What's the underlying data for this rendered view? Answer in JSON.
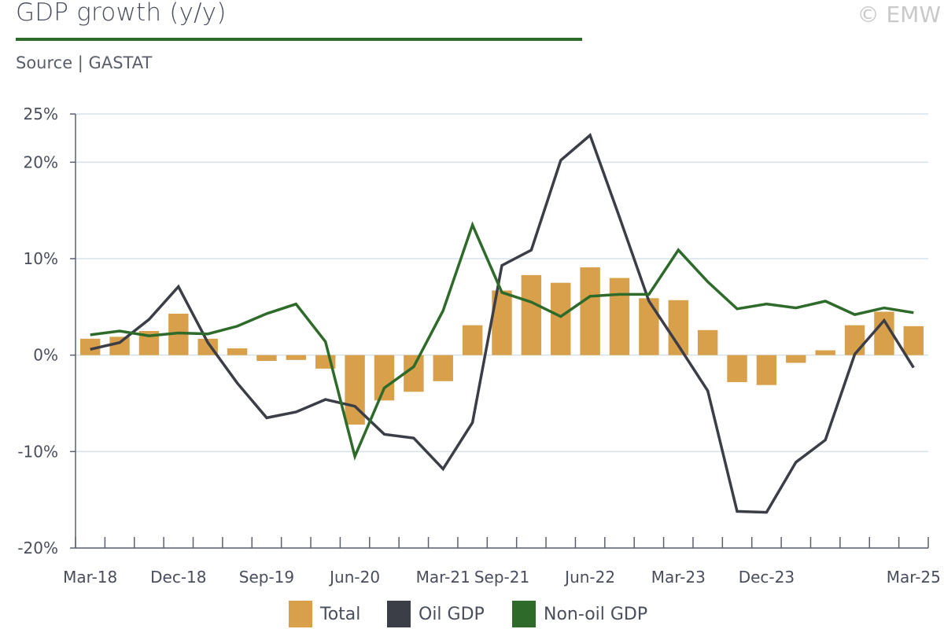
{
  "header": {
    "title": "GDP growth (y/y)",
    "source": "Source | GASTAT",
    "copyright": "© EMW"
  },
  "colors": {
    "total": "#d9a04c",
    "oil": "#3b3d47",
    "nonoil": "#2e6b2a",
    "title_rule": "#2e6b2a",
    "grid": "#d6e2ea",
    "axis": "#5c6070"
  },
  "chart_data": {
    "type": "bar",
    "title": "GDP growth (y/y)",
    "ylim": [
      -20,
      25
    ],
    "yticks": [
      25,
      20,
      10,
      0,
      -10,
      -20
    ],
    "ytick_labels": [
      "25%",
      "20%",
      "10%",
      "0%",
      "-10%",
      "-20%"
    ],
    "grid": true,
    "legend_position": "bottom",
    "x_tick_labels": [
      {
        "index": 0,
        "label": "Mar-18"
      },
      {
        "index": 3,
        "label": "Dec-18"
      },
      {
        "index": 6,
        "label": "Sep-19"
      },
      {
        "index": 9,
        "label": "Jun-20"
      },
      {
        "index": 12,
        "label": "Mar-21"
      },
      {
        "index": 14,
        "label": "Sep-21"
      },
      {
        "index": 17,
        "label": "Jun-22"
      },
      {
        "index": 20,
        "label": "Mar-23"
      },
      {
        "index": 23,
        "label": "Dec-23"
      },
      {
        "index": 28,
        "label": "Mar-25"
      }
    ],
    "categories": [
      "Q1-18",
      "Q2-18",
      "Q3-18",
      "Q4-18",
      "Q1-19",
      "Q2-19",
      "Q3-19",
      "Q4-19",
      "Q1-20",
      "Q2-20",
      "Q3-20",
      "Q4-20",
      "Q1-21",
      "Q2-21",
      "Q3-21",
      "Q4-21",
      "Q1-22",
      "Q2-22",
      "Q3-22",
      "Q4-22",
      "Q1-23",
      "Q2-23",
      "Q3-23",
      "Q4-23",
      "Q1-24",
      "Q2-24",
      "Q3-24",
      "Q4-24",
      "Q1-25"
    ],
    "series": [
      {
        "name": "Total",
        "kind": "bar",
        "color": "#d9a04c",
        "values": [
          1.7,
          1.9,
          2.5,
          4.3,
          1.7,
          0.7,
          -0.6,
          -0.5,
          -1.4,
          -7.2,
          -4.7,
          -3.8,
          -2.7,
          3.1,
          6.7,
          8.3,
          7.5,
          9.1,
          8.0,
          5.9,
          5.7,
          2.6,
          -2.8,
          -3.1,
          -0.8,
          0.5,
          3.1,
          4.5,
          3.0
        ]
      },
      {
        "name": "Oil GDP",
        "kind": "line",
        "color": "#3b3d47",
        "values": [
          0.6,
          1.3,
          3.7,
          7.1,
          1.3,
          -2.9,
          -6.5,
          -5.9,
          -4.6,
          -5.3,
          -8.2,
          -8.6,
          -11.8,
          -7.0,
          9.3,
          10.9,
          20.2,
          22.8,
          14.3,
          5.6,
          1.0,
          -3.7,
          -16.2,
          -16.3,
          -11.1,
          -8.8,
          0.1,
          3.6,
          -1.3
        ]
      },
      {
        "name": "Non-oil GDP",
        "kind": "line",
        "color": "#2e6b2a",
        "values": [
          2.1,
          2.5,
          2.0,
          2.3,
          2.2,
          3.0,
          4.3,
          5.3,
          1.4,
          -10.5,
          -3.4,
          -1.2,
          4.6,
          13.5,
          6.5,
          5.5,
          4.0,
          6.1,
          6.3,
          6.3,
          10.9,
          7.6,
          4.8,
          5.3,
          4.9,
          5.6,
          4.2,
          4.9,
          4.4
        ]
      }
    ]
  }
}
